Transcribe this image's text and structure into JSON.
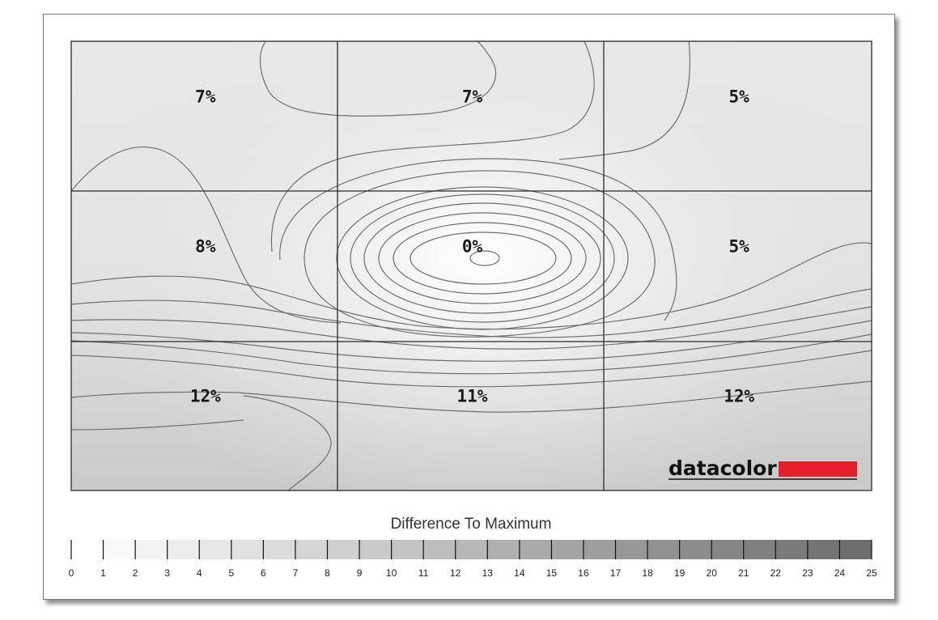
{
  "chart_data": {
    "type": "heatmap",
    "title": "",
    "legend_title": "Difference To Maximum",
    "rows": 3,
    "cols": 3,
    "values": [
      [
        7,
        7,
        5
      ],
      [
        8,
        0,
        5
      ],
      [
        12,
        11,
        12
      ]
    ],
    "cell_labels": [
      [
        "7%",
        "7%",
        "5%"
      ],
      [
        "8%",
        "0%",
        "5%"
      ],
      [
        "12%",
        "11%",
        "12%"
      ]
    ],
    "scale": {
      "min": 0,
      "max": 25,
      "ticks": [
        "0",
        "1",
        "2",
        "3",
        "4",
        "5",
        "6",
        "7",
        "8",
        "9",
        "10",
        "11",
        "12",
        "13",
        "14",
        "15",
        "16",
        "17",
        "18",
        "19",
        "20",
        "21",
        "22",
        "23",
        "24",
        "25"
      ],
      "color_min": "#ffffff",
      "color_max": "#6e6e6e"
    },
    "grid": true
  },
  "brand": {
    "name": "datacolor",
    "bar_color": "#e3202b"
  }
}
